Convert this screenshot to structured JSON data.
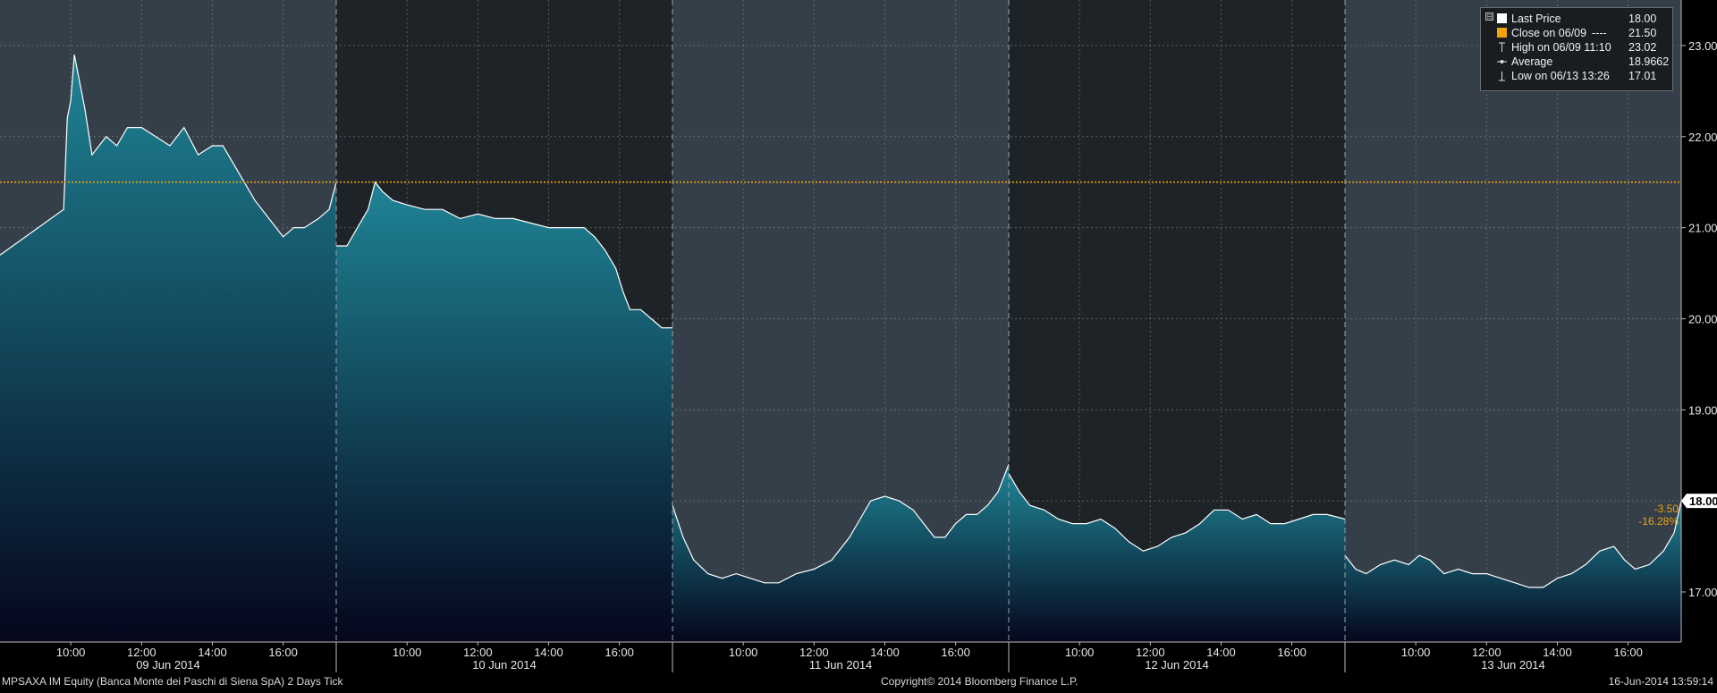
{
  "colors": {
    "background": "#000000",
    "day_band_light": "#343f49",
    "day_band_dark": "#1e2328",
    "area_top": "#1f8496",
    "area_bottom": "#05061c",
    "line": "#ffffff",
    "close_line": "#f0a30a",
    "grid": "#8a9096",
    "text": "#e6e6e6",
    "change_text": "#f0a30a"
  },
  "legend": {
    "collapse_symbol": "⊟",
    "items": [
      {
        "label": "Last Price",
        "extra": "",
        "value": "18.00",
        "icon": "white-square-icon"
      },
      {
        "label": "Close on 06/09",
        "extra": "----",
        "value": "21.50",
        "icon": "orange-square-icon"
      },
      {
        "label": "High on 06/09 11:10",
        "extra": "",
        "value": "23.02",
        "icon": "high-marker-icon"
      },
      {
        "label": "Average",
        "extra": "",
        "value": "18.9662",
        "icon": "average-marker-icon"
      },
      {
        "label": "Low on 06/13 13:26",
        "extra": "",
        "value": "17.01",
        "icon": "low-marker-icon"
      }
    ]
  },
  "last_price_tag": {
    "value": "18.00",
    "change": "-3.50",
    "change_pct": "-16.28%"
  },
  "footer": {
    "left": "MPSAXA IM Equity (Banca Monte dei Paschi di Siena SpA) 2 Days  Tick",
    "center": "Copyright© 2014 Bloomberg Finance L.P.",
    "right": "16-Jun-2014 13:59:14"
  },
  "chart_data": {
    "type": "area",
    "title": "",
    "xlabel": "",
    "ylabel": "",
    "ylim": [
      16.45,
      23.5
    ],
    "y_ticks": [
      "17.00",
      "18.00",
      "19.00",
      "20.00",
      "21.00",
      "22.00",
      "23.00"
    ],
    "hours_per_day": [
      8.0,
      17.5
    ],
    "x_hour_ticks": [
      "10:00",
      "12:00",
      "14:00",
      "16:00"
    ],
    "days": [
      {
        "label": "09 Jun 2014",
        "points": [
          [
            8.0,
            20.7
          ],
          [
            9.8,
            21.2
          ],
          [
            9.9,
            22.2
          ],
          [
            10.0,
            22.4
          ],
          [
            10.1,
            22.9
          ],
          [
            10.25,
            22.6
          ],
          [
            10.4,
            22.3
          ],
          [
            10.6,
            21.8
          ],
          [
            10.8,
            21.9
          ],
          [
            11.0,
            22.0
          ],
          [
            11.3,
            21.9
          ],
          [
            11.6,
            22.1
          ],
          [
            12.0,
            22.1
          ],
          [
            12.4,
            22.0
          ],
          [
            12.8,
            21.9
          ],
          [
            13.2,
            22.1
          ],
          [
            13.6,
            21.8
          ],
          [
            14.0,
            21.9
          ],
          [
            14.3,
            21.9
          ],
          [
            14.6,
            21.7
          ],
          [
            14.9,
            21.5
          ],
          [
            15.2,
            21.3
          ],
          [
            15.6,
            21.1
          ],
          [
            16.0,
            20.9
          ],
          [
            16.3,
            21.0
          ],
          [
            16.6,
            21.0
          ],
          [
            17.0,
            21.1
          ],
          [
            17.3,
            21.2
          ],
          [
            17.5,
            21.5
          ]
        ]
      },
      {
        "label": "10 Jun 2014",
        "points": [
          [
            8.0,
            20.8
          ],
          [
            8.3,
            20.8
          ],
          [
            8.6,
            21.0
          ],
          [
            8.9,
            21.2
          ],
          [
            9.1,
            21.5
          ],
          [
            9.3,
            21.4
          ],
          [
            9.6,
            21.3
          ],
          [
            10.0,
            21.25
          ],
          [
            10.5,
            21.2
          ],
          [
            11.0,
            21.2
          ],
          [
            11.5,
            21.1
          ],
          [
            12.0,
            21.15
          ],
          [
            12.5,
            21.1
          ],
          [
            13.0,
            21.1
          ],
          [
            13.5,
            21.05
          ],
          [
            14.0,
            21.0
          ],
          [
            14.5,
            21.0
          ],
          [
            15.0,
            21.0
          ],
          [
            15.3,
            20.9
          ],
          [
            15.6,
            20.75
          ],
          [
            15.9,
            20.55
          ],
          [
            16.1,
            20.3
          ],
          [
            16.3,
            20.1
          ],
          [
            16.6,
            20.1
          ],
          [
            16.9,
            20.0
          ],
          [
            17.2,
            19.9
          ],
          [
            17.5,
            19.9
          ]
        ]
      },
      {
        "label": "11 Jun 2014",
        "points": [
          [
            8.0,
            17.95
          ],
          [
            8.3,
            17.6
          ],
          [
            8.6,
            17.35
          ],
          [
            9.0,
            17.2
          ],
          [
            9.4,
            17.15
          ],
          [
            9.8,
            17.2
          ],
          [
            10.2,
            17.15
          ],
          [
            10.6,
            17.1
          ],
          [
            11.0,
            17.1
          ],
          [
            11.5,
            17.2
          ],
          [
            12.0,
            17.25
          ],
          [
            12.5,
            17.35
          ],
          [
            13.0,
            17.6
          ],
          [
            13.3,
            17.8
          ],
          [
            13.6,
            18.0
          ],
          [
            14.0,
            18.05
          ],
          [
            14.4,
            18.0
          ],
          [
            14.8,
            17.9
          ],
          [
            15.1,
            17.75
          ],
          [
            15.4,
            17.6
          ],
          [
            15.7,
            17.6
          ],
          [
            16.0,
            17.75
          ],
          [
            16.3,
            17.85
          ],
          [
            16.6,
            17.85
          ],
          [
            16.9,
            17.95
          ],
          [
            17.2,
            18.1
          ],
          [
            17.5,
            18.4
          ]
        ]
      },
      {
        "label": "12 Jun 2014",
        "points": [
          [
            8.0,
            18.3
          ],
          [
            8.3,
            18.1
          ],
          [
            8.6,
            17.95
          ],
          [
            9.0,
            17.9
          ],
          [
            9.4,
            17.8
          ],
          [
            9.8,
            17.75
          ],
          [
            10.2,
            17.75
          ],
          [
            10.6,
            17.8
          ],
          [
            11.0,
            17.7
          ],
          [
            11.4,
            17.55
          ],
          [
            11.8,
            17.45
          ],
          [
            12.2,
            17.5
          ],
          [
            12.6,
            17.6
          ],
          [
            13.0,
            17.65
          ],
          [
            13.4,
            17.75
          ],
          [
            13.8,
            17.9
          ],
          [
            14.2,
            17.9
          ],
          [
            14.6,
            17.8
          ],
          [
            15.0,
            17.85
          ],
          [
            15.4,
            17.75
          ],
          [
            15.8,
            17.75
          ],
          [
            16.2,
            17.8
          ],
          [
            16.6,
            17.85
          ],
          [
            17.0,
            17.85
          ],
          [
            17.5,
            17.8
          ]
        ]
      },
      {
        "label": "13 Jun 2014",
        "points": [
          [
            8.0,
            17.4
          ],
          [
            8.3,
            17.25
          ],
          [
            8.6,
            17.2
          ],
          [
            9.0,
            17.3
          ],
          [
            9.4,
            17.35
          ],
          [
            9.8,
            17.3
          ],
          [
            10.1,
            17.4
          ],
          [
            10.4,
            17.35
          ],
          [
            10.8,
            17.2
          ],
          [
            11.2,
            17.25
          ],
          [
            11.6,
            17.2
          ],
          [
            12.0,
            17.2
          ],
          [
            12.4,
            17.15
          ],
          [
            12.8,
            17.1
          ],
          [
            13.2,
            17.05
          ],
          [
            13.6,
            17.05
          ],
          [
            14.0,
            17.15
          ],
          [
            14.4,
            17.2
          ],
          [
            14.8,
            17.3
          ],
          [
            15.2,
            17.45
          ],
          [
            15.6,
            17.5
          ],
          [
            15.9,
            17.35
          ],
          [
            16.2,
            17.25
          ],
          [
            16.6,
            17.3
          ],
          [
            17.0,
            17.45
          ],
          [
            17.3,
            17.65
          ],
          [
            17.5,
            18.0
          ]
        ]
      }
    ],
    "close_level": 21.5,
    "last_price": 18.0,
    "grid": true,
    "legend_position": "top-right"
  }
}
